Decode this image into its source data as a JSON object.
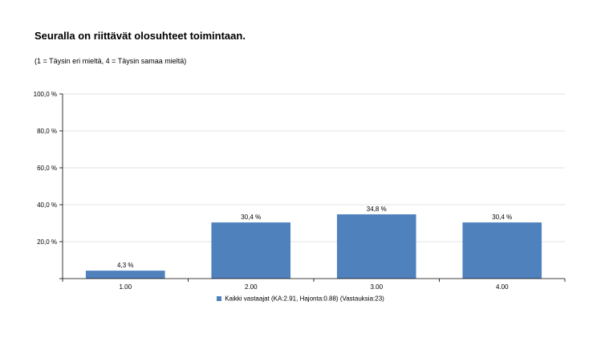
{
  "title": "Seuralla on riittävät olosuhteet toimintaan.",
  "subtitle": "(1 = Täysin eri mieltä, 4 = Täysin samaa mieltä)",
  "colors": {
    "bar": "#4f81bd",
    "grid": "#e3e3e3",
    "axis": "#000000"
  },
  "chart_data": {
    "type": "bar",
    "categories": [
      "1.00",
      "2.00",
      "3.00",
      "4.00"
    ],
    "series": [
      {
        "name": "Kaikki vastaajat (KA:2.91, Hajonta:0.88) (Vastauksia:23)",
        "values": [
          4.3,
          30.4,
          34.8,
          30.4
        ]
      }
    ],
    "value_labels": [
      "4,3 %",
      "30,4 %",
      "34,8 %",
      "30,4 %"
    ],
    "ylim": [
      0,
      100
    ],
    "yticks": [
      0,
      20,
      40,
      60,
      80,
      100
    ],
    "ytick_labels": [
      "",
      "20,0 %",
      "40,0 %",
      "60,0 %",
      "80,0 %",
      "100,0 %"
    ],
    "grid": true,
    "legend_position": "bottom-center"
  }
}
